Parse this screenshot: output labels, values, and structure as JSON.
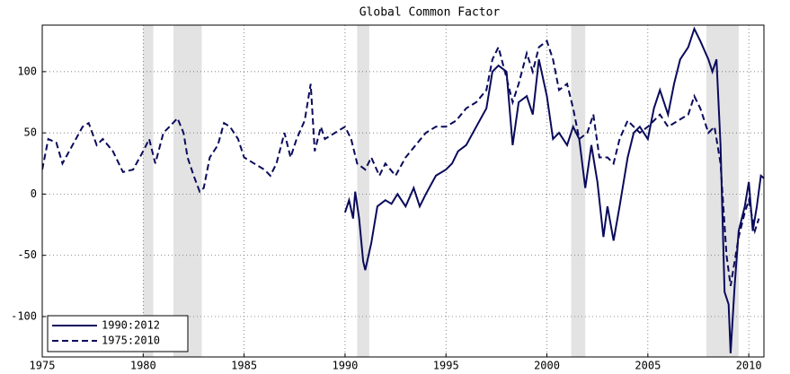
{
  "chart_data": {
    "type": "line",
    "title": "Global Common Factor",
    "xlim": [
      1975,
      2010.75
    ],
    "ylim": [
      -133,
      138
    ],
    "xticks": [
      1975,
      1980,
      1985,
      1990,
      1995,
      2000,
      2005,
      2010
    ],
    "yticks": [
      -100,
      -50,
      0,
      50,
      100
    ],
    "grid": true,
    "legend": "lower left",
    "shaded_regions": [
      [
        1980,
        1980.5
      ],
      [
        1981.5,
        1982.9
      ],
      [
        1990.6,
        1991.2
      ],
      [
        2001.2,
        2001.9
      ],
      [
        2007.9,
        2009.5
      ]
    ],
    "series": [
      {
        "name": "1990:2012",
        "color": "#0a0a5c",
        "style": "solid",
        "x": [
          1990,
          1990.2,
          1990.4,
          1990.5,
          1990.7,
          1990.9,
          1991,
          1991.3,
          1991.6,
          1992,
          1992.3,
          1992.6,
          1993,
          1993.4,
          1993.7,
          1994,
          1994.5,
          1995,
          1995.3,
          1995.6,
          1996,
          1996.5,
          1997,
          1997.3,
          1997.6,
          1998,
          1998.3,
          1998.6,
          1999,
          1999.3,
          1999.6,
          2000,
          2000.3,
          2000.6,
          2001,
          2001.3,
          2001.6,
          2001.9,
          2002.2,
          2002.5,
          2002.8,
          2003,
          2003.3,
          2003.6,
          2004,
          2004.3,
          2004.6,
          2005,
          2005.3,
          2005.6,
          2006,
          2006.3,
          2006.6,
          2007,
          2007.3,
          2007.6,
          2008,
          2008.2,
          2008.4,
          2008.6,
          2008.8,
          2009,
          2009.1,
          2009.3,
          2009.5,
          2009.8,
          2010,
          2010.2,
          2010.4,
          2010.6,
          2010.75
        ],
        "values": [
          -15,
          -5,
          -20,
          2,
          -20,
          -55,
          -62,
          -40,
          -10,
          -5,
          -8,
          0,
          -10,
          5,
          -10,
          0,
          15,
          20,
          25,
          35,
          40,
          55,
          70,
          100,
          105,
          100,
          40,
          75,
          80,
          65,
          110,
          80,
          45,
          50,
          40,
          55,
          45,
          5,
          40,
          10,
          -35,
          -10,
          -38,
          -10,
          30,
          50,
          55,
          45,
          70,
          85,
          65,
          90,
          110,
          120,
          135,
          125,
          110,
          100,
          110,
          40,
          -80,
          -90,
          -130,
          -75,
          -30,
          -10,
          10,
          -30,
          -10,
          15,
          13
        ]
      },
      {
        "name": "1975:2010",
        "color": "#0a0a5c",
        "style": "dashed",
        "x": [
          1975,
          1975.3,
          1975.7,
          1976,
          1976.5,
          1977,
          1977.3,
          1977.7,
          1978,
          1978.5,
          1979,
          1979.5,
          1980,
          1980.3,
          1980.6,
          1981,
          1981.3,
          1981.7,
          1982,
          1982.2,
          1982.5,
          1982.8,
          1983,
          1983.3,
          1983.7,
          1984,
          1984.3,
          1984.7,
          1985,
          1985.5,
          1986,
          1986.3,
          1986.6,
          1987,
          1987.3,
          1987.6,
          1988,
          1988.3,
          1988.5,
          1988.8,
          1989,
          1989.5,
          1990,
          1990.3,
          1990.6,
          1991,
          1991.3,
          1991.7,
          1992,
          1992.5,
          1993,
          1993.5,
          1994,
          1994.5,
          1995,
          1995.5,
          1996,
          1996.5,
          1997,
          1997.3,
          1997.6,
          1998,
          1998.3,
          1998.6,
          1999,
          1999.3,
          1999.6,
          2000,
          2000.3,
          2000.6,
          2001,
          2001.3,
          2001.6,
          2002,
          2002.3,
          2002.6,
          2003,
          2003.3,
          2003.6,
          2004,
          2004.3,
          2004.6,
          2005,
          2005.3,
          2005.6,
          2006,
          2006.5,
          2007,
          2007.3,
          2007.6,
          2008,
          2008.3,
          2008.6,
          2008.9,
          2009.1,
          2009.3,
          2009.5,
          2009.8,
          2010,
          2010.3,
          2010.5
        ],
        "values": [
          20,
          45,
          42,
          25,
          40,
          55,
          58,
          40,
          45,
          35,
          18,
          20,
          35,
          45,
          25,
          50,
          55,
          62,
          50,
          30,
          15,
          2,
          5,
          30,
          40,
          58,
          55,
          45,
          30,
          25,
          20,
          15,
          25,
          50,
          30,
          45,
          60,
          90,
          35,
          55,
          45,
          50,
          55,
          45,
          25,
          20,
          30,
          15,
          25,
          15,
          30,
          40,
          50,
          55,
          55,
          60,
          70,
          75,
          85,
          110,
          120,
          95,
          75,
          90,
          115,
          100,
          120,
          125,
          110,
          85,
          90,
          70,
          45,
          50,
          65,
          30,
          30,
          25,
          45,
          60,
          55,
          50,
          55,
          60,
          65,
          55,
          60,
          65,
          80,
          70,
          50,
          55,
          25,
          -50,
          -75,
          -55,
          -35,
          -15,
          -5,
          -30,
          -20
        ]
      }
    ]
  }
}
